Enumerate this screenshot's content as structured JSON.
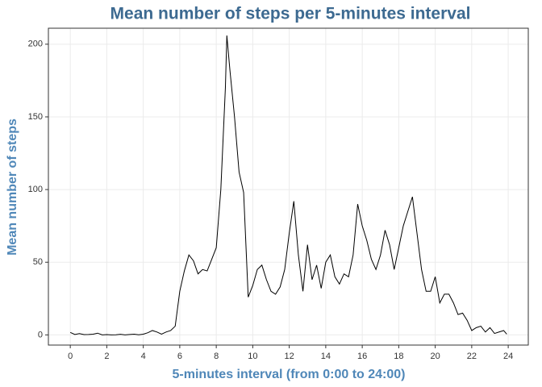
{
  "chart_data": {
    "type": "line",
    "title": "Mean number of steps per 5-minutes interval",
    "x_label": "5-minutes interval (from 0:00 to 24:00)",
    "y_label": "Mean number of steps",
    "x": [
      0,
      0.25,
      0.5,
      0.75,
      1,
      1.25,
      1.5,
      1.75,
      2,
      2.25,
      2.5,
      2.75,
      3,
      3.25,
      3.5,
      3.75,
      4,
      4.25,
      4.5,
      4.75,
      5,
      5.25,
      5.5,
      5.75,
      6,
      6.25,
      6.5,
      6.75,
      7,
      7.25,
      7.5,
      7.75,
      8,
      8.25,
      8.5,
      8.58,
      8.75,
      9,
      9.25,
      9.5,
      9.75,
      10,
      10.25,
      10.5,
      10.75,
      11,
      11.25,
      11.5,
      11.75,
      12,
      12.25,
      12.5,
      12.75,
      13,
      13.25,
      13.5,
      13.75,
      14,
      14.25,
      14.5,
      14.75,
      15,
      15.25,
      15.5,
      15.75,
      16,
      16.25,
      16.5,
      16.75,
      17,
      17.25,
      17.5,
      17.75,
      18,
      18.25,
      18.5,
      18.75,
      19,
      19.25,
      19.5,
      19.75,
      20,
      20.25,
      20.5,
      20.75,
      21,
      21.25,
      21.5,
      21.75,
      22,
      22.25,
      22.5,
      22.75,
      23,
      23.25,
      23.5,
      23.75,
      23.92
    ],
    "series": [
      {
        "name": "steps",
        "color": "#000000",
        "values": [
          1.7,
          0.3,
          0.9,
          0.2,
          0.3,
          0.5,
          1.2,
          0,
          0.2,
          0,
          0.1,
          0.4,
          0,
          0.3,
          0.5,
          0.1,
          0.5,
          1.5,
          3,
          2,
          0.5,
          2,
          3,
          6,
          30,
          44,
          55,
          51,
          42,
          45,
          44,
          52,
          60,
          100,
          170,
          206,
          182,
          150,
          112,
          98,
          26,
          34,
          45,
          48,
          38,
          30,
          28,
          33,
          45,
          70,
          92,
          55,
          30,
          62,
          38,
          48,
          32,
          50,
          55,
          40,
          35,
          42,
          40,
          55,
          90,
          75,
          65,
          52,
          45,
          55,
          72,
          62,
          45,
          60,
          75,
          85,
          95,
          70,
          45,
          30,
          30,
          40,
          22,
          28,
          28,
          22,
          14,
          15,
          10,
          3,
          5,
          6,
          2,
          5,
          1,
          2,
          3,
          0.5
        ]
      }
    ],
    "xlim": [
      -1.2,
      25.1
    ],
    "ylim": [
      -7,
      211
    ],
    "xticks": [
      0,
      2,
      4,
      6,
      8,
      10,
      12,
      14,
      16,
      18,
      20,
      22,
      24
    ],
    "yticks": [
      0,
      50,
      100,
      150,
      200
    ],
    "grid": true
  }
}
